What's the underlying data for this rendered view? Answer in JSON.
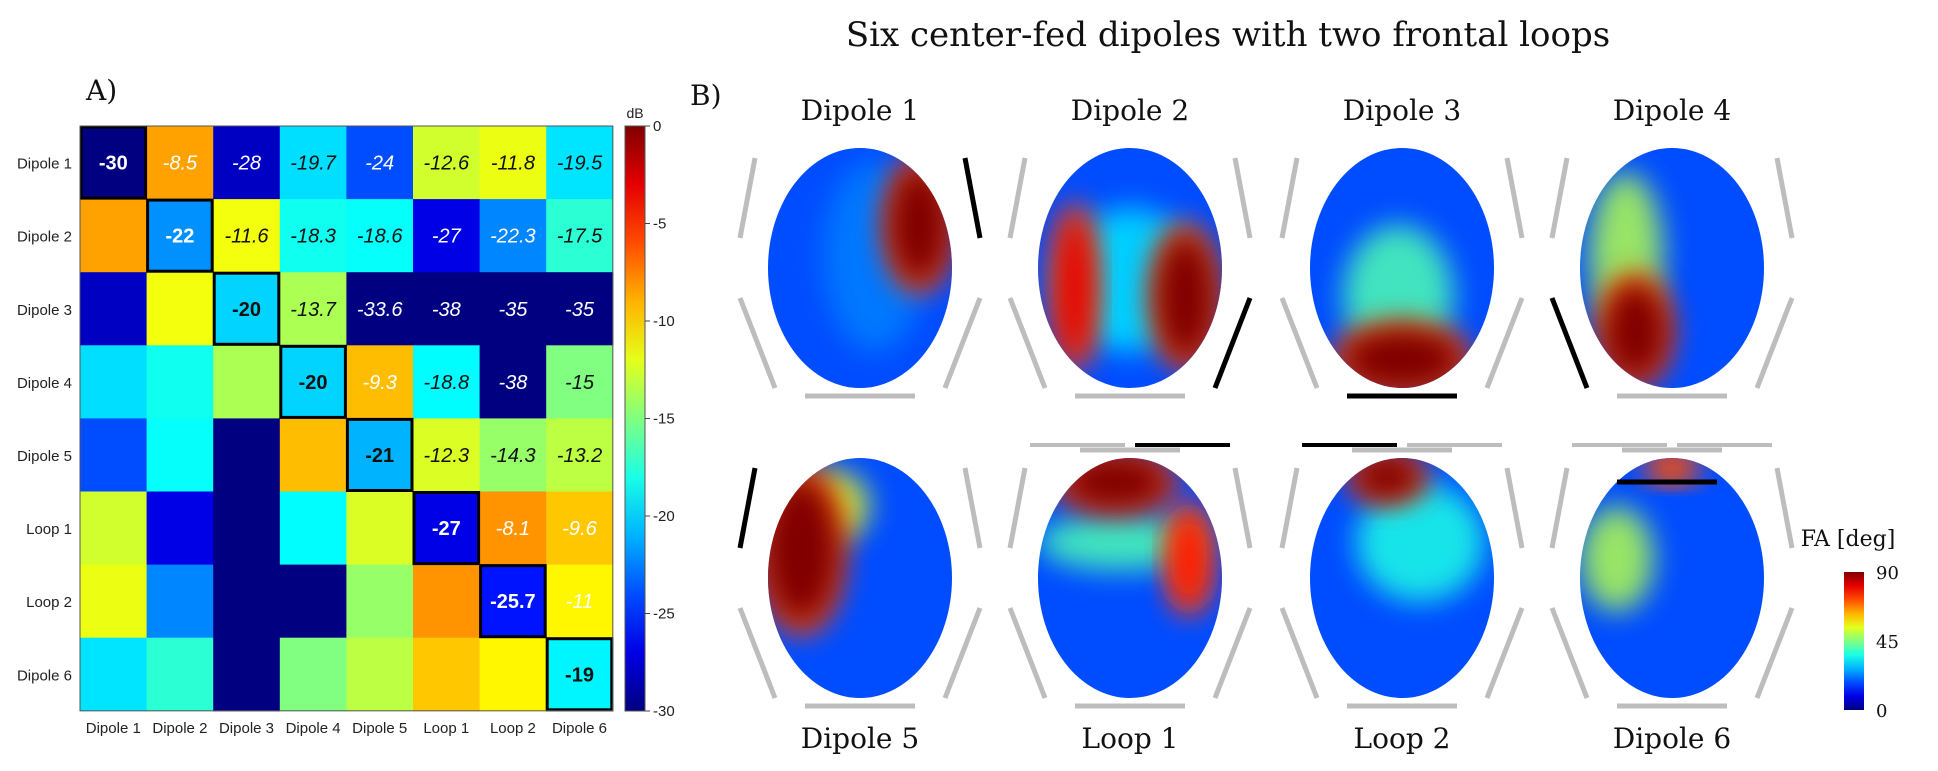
{
  "title": "Six center-fed dipoles with two frontal loops",
  "panel_a_label": "A)",
  "panel_b_label": "B)",
  "chart_data": [
    {
      "type": "heatmap",
      "panel": "A)",
      "row_labels": [
        "Dipole 1",
        "Dipole 2",
        "Dipole 3",
        "Dipole 4",
        "Dipole 5",
        "Loop 1",
        "Loop 2",
        "Dipole 6"
      ],
      "col_labels": [
        "Dipole 1",
        "Dipole 2",
        "Dipole 3",
        "Dipole 4",
        "Dipole 5",
        "Loop 1",
        "Loop 2",
        "Dipole 6"
      ],
      "values": [
        [
          -30,
          -8.5,
          -28,
          -19.7,
          -24,
          -12.6,
          -11.8,
          -19.5
        ],
        [
          -8.5,
          -22,
          -11.6,
          -18.3,
          -18.6,
          -27,
          -22.3,
          -17.5
        ],
        [
          -28,
          -11.6,
          -20,
          -13.7,
          -33.6,
          -38,
          -35,
          -35
        ],
        [
          -19.7,
          -18.3,
          -13.7,
          -20,
          -9.3,
          -18.8,
          -38,
          -15
        ],
        [
          -24,
          -18.6,
          -33.6,
          -9.3,
          -21,
          -12.3,
          -14.3,
          -13.2
        ],
        [
          -12.6,
          -27,
          -38,
          -18.8,
          -12.3,
          -27,
          -8.1,
          -9.6
        ],
        [
          -11.8,
          -22.3,
          -35,
          -38,
          -14.3,
          -8.1,
          -25.7,
          -11
        ],
        [
          -19.5,
          -17.5,
          -35,
          -15,
          -13.2,
          -9.6,
          -11,
          -19
        ]
      ],
      "cell_labels": [
        [
          "-30",
          "-8.5",
          "-28",
          "-19.7",
          "-24",
          "-12.6",
          "-11.8",
          "-19.5"
        ],
        [
          "",
          "-22",
          "-11.6",
          "-18.3",
          "-18.6",
          "-27",
          "-22.3",
          "-17.5"
        ],
        [
          "",
          "",
          "-20",
          "-13.7",
          "-33.6",
          "-38",
          "-35",
          "-35"
        ],
        [
          "",
          "",
          "",
          "-20",
          "-9.3",
          "-18.8",
          "-38",
          "-15"
        ],
        [
          "",
          "",
          "",
          "",
          "-21",
          "-12.3",
          "-14.3",
          "-13.2"
        ],
        [
          "",
          "",
          "",
          "",
          "",
          "-27",
          "-8.1",
          "-9.6"
        ],
        [
          "",
          "",
          "",
          "",
          "",
          "",
          "-25.7",
          "-11"
        ],
        [
          "",
          "",
          "",
          "",
          "",
          "",
          "",
          "-19"
        ]
      ],
      "colorbar": {
        "label": "dB",
        "min": -30,
        "max": 0,
        "ticks": [
          "0",
          "-5",
          "-10",
          "-15",
          "-20",
          "-25",
          "-30"
        ]
      },
      "colormap": "jet"
    },
    {
      "type": "heatmap",
      "panel": "B)",
      "maps": [
        {
          "name": "Dipole 1",
          "hot": [
            {
              "cx": 0.82,
              "cy": 0.32,
              "rx": 0.16,
              "ry": 0.24,
              "v": 1.0
            }
          ],
          "warm": [
            {
              "cx": 0.58,
              "cy": 0.45,
              "rx": 0.28,
              "ry": 0.4,
              "v": 0.25
            }
          ],
          "el_active": 4
        },
        {
          "name": "Dipole 2",
          "hot": [
            {
              "cx": 0.8,
              "cy": 0.62,
              "rx": 0.16,
              "ry": 0.26,
              "v": 1.0
            },
            {
              "cx": 0.2,
              "cy": 0.58,
              "rx": 0.1,
              "ry": 0.3,
              "v": 0.9
            }
          ],
          "warm": [
            {
              "cx": 0.5,
              "cy": 0.55,
              "rx": 0.4,
              "ry": 0.3,
              "v": 0.35
            }
          ],
          "el_active": 3
        },
        {
          "name": "Dipole 3",
          "hot": [
            {
              "cx": 0.5,
              "cy": 0.88,
              "rx": 0.32,
              "ry": 0.13,
              "v": 1.0
            }
          ],
          "warm": [
            {
              "cx": 0.48,
              "cy": 0.62,
              "rx": 0.3,
              "ry": 0.3,
              "v": 0.45
            }
          ],
          "el_active": 2
        },
        {
          "name": "Dipole 4",
          "hot": [
            {
              "cx": 0.3,
              "cy": 0.76,
              "rx": 0.17,
              "ry": 0.2,
              "v": 1.0
            }
          ],
          "warm": [
            {
              "cx": 0.25,
              "cy": 0.45,
              "rx": 0.2,
              "ry": 0.35,
              "v": 0.55
            }
          ],
          "el_active": 1
        },
        {
          "name": "Dipole 5",
          "hot": [
            {
              "cx": 0.18,
              "cy": 0.38,
              "rx": 0.2,
              "ry": 0.3,
              "v": 1.0
            }
          ],
          "warm": [
            {
              "cx": 0.35,
              "cy": 0.2,
              "rx": 0.2,
              "ry": 0.15,
              "v": 0.6
            }
          ],
          "el_active": 0
        },
        {
          "name": "Loop 1",
          "hot": [
            {
              "cx": 0.42,
              "cy": 0.1,
              "rx": 0.28,
              "ry": 0.11,
              "v": 1.0
            },
            {
              "cx": 0.82,
              "cy": 0.42,
              "rx": 0.1,
              "ry": 0.2,
              "v": 0.85
            }
          ],
          "warm": [
            {
              "cx": 0.45,
              "cy": 0.35,
              "rx": 0.45,
              "ry": 0.12,
              "v": 0.45
            }
          ],
          "el_active": 6
        },
        {
          "name": "Loop 2",
          "hot": [
            {
              "cx": 0.42,
              "cy": 0.08,
              "rx": 0.18,
              "ry": 0.09,
              "v": 1.0
            }
          ],
          "warm": [
            {
              "cx": 0.6,
              "cy": 0.35,
              "rx": 0.35,
              "ry": 0.25,
              "v": 0.4
            }
          ],
          "el_active": 7
        },
        {
          "name": "Dipole 6",
          "hot": [
            {
              "cx": 0.5,
              "cy": 0.04,
              "rx": 0.12,
              "ry": 0.05,
              "v": 0.8
            }
          ],
          "warm": [
            {
              "cx": 0.2,
              "cy": 0.42,
              "rx": 0.2,
              "ry": 0.22,
              "v": 0.55
            }
          ],
          "el_active": 8
        }
      ],
      "colorbar": {
        "label": "FA [deg]",
        "min": 0,
        "max": 90,
        "ticks": [
          "90",
          "45",
          "0"
        ]
      },
      "colormap": "jet"
    }
  ]
}
